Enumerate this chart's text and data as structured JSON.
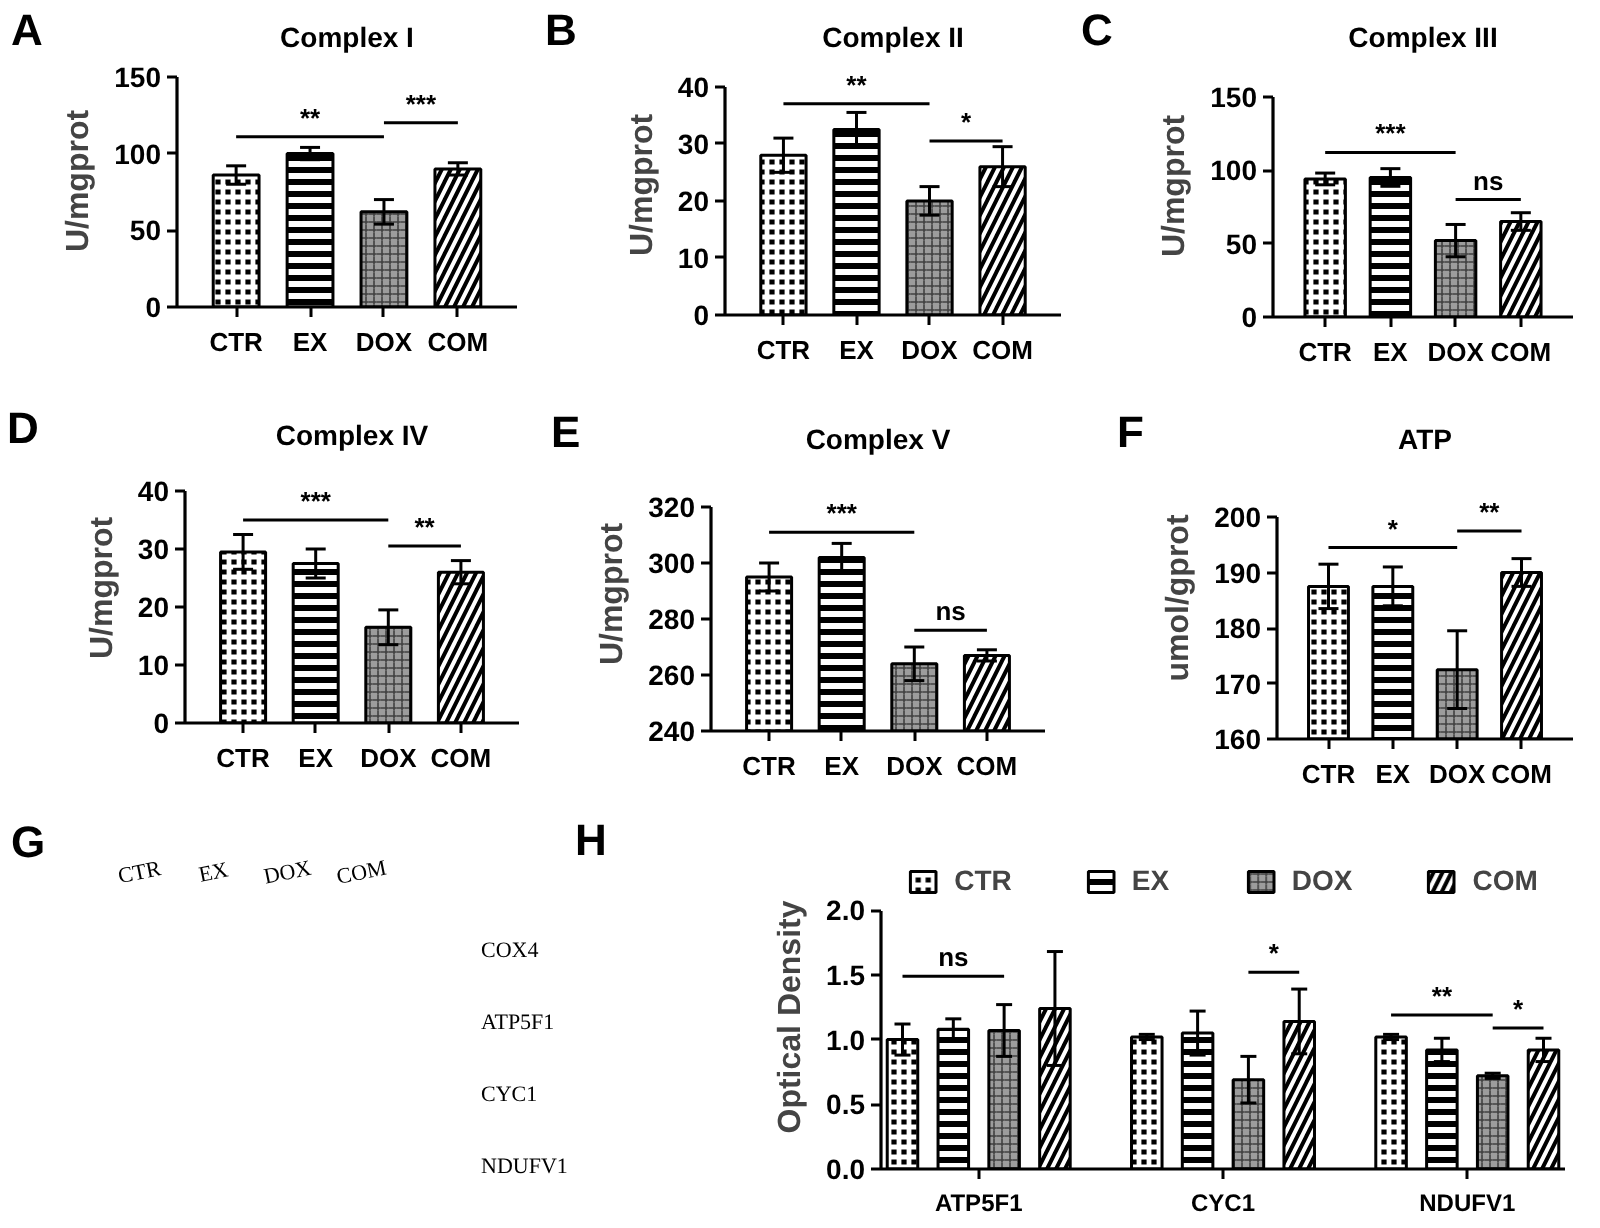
{
  "chart_data": [
    {
      "type": "bar",
      "title": "Complex I",
      "ylabel": "U/mgprot",
      "categories": [
        "CTR",
        "EX",
        "DOX",
        "COM"
      ],
      "values": [
        86,
        100,
        62,
        90
      ],
      "errors": [
        6,
        4,
        8,
        4
      ],
      "colors": [
        "#000000",
        "#000000",
        "#9c9c9c",
        "#000000"
      ],
      "ylim": [
        0,
        150
      ],
      "yticks": [
        0,
        50,
        100,
        150
      ],
      "annotations": [
        "A",
        "**",
        "***"
      ]
    },
    {
      "type": "bar",
      "title": "Complex II",
      "ylabel": "U/mgprot",
      "categories": [
        "CTR",
        "EX",
        "DOX",
        "COM"
      ],
      "values": [
        28,
        32.5,
        20,
        26
      ],
      "errors": [
        3,
        3,
        2.5,
        3.5
      ],
      "colors": [
        "#000000",
        "#000000",
        "#9c9c9c",
        "#000000"
      ],
      "ylim": [
        0,
        40
      ],
      "yticks": [
        0,
        10,
        20,
        30,
        40
      ],
      "annotations": [
        "B",
        "**",
        "*"
      ]
    },
    {
      "type": "bar",
      "title": "Complex III",
      "ylabel": "U/mgprot",
      "categories": [
        "CTR",
        "EX",
        "DOX",
        "COM"
      ],
      "values": [
        94,
        95,
        52,
        65
      ],
      "errors": [
        4,
        6,
        11,
        6
      ],
      "colors": [
        "#000000",
        "#000000",
        "#9c9c9c",
        "#000000"
      ],
      "ylim": [
        0,
        150
      ],
      "yticks": [
        0,
        50,
        100,
        150
      ],
      "annotations": [
        "C",
        "***",
        "ns"
      ]
    },
    {
      "type": "bar",
      "title": "Complex IV",
      "ylabel": "U/mgprot",
      "categories": [
        "CTR",
        "EX",
        "DOX",
        "COM"
      ],
      "values": [
        29.5,
        27.5,
        16.5,
        26
      ],
      "errors": [
        3,
        2.5,
        3,
        2
      ],
      "colors": [
        "#000000",
        "#000000",
        "#9c9c9c",
        "#000000"
      ],
      "ylim": [
        0,
        40
      ],
      "yticks": [
        0,
        10,
        20,
        30,
        40
      ],
      "annotations": [
        "D",
        "***",
        "**"
      ]
    },
    {
      "type": "bar",
      "title": "Complex V",
      "ylabel": "U/mgprot",
      "categories": [
        "CTR",
        "EX",
        "DOX",
        "COM"
      ],
      "values": [
        295,
        302,
        264,
        267
      ],
      "errors": [
        5,
        5,
        6,
        2
      ],
      "colors": [
        "#000000",
        "#000000",
        "#9c9c9c",
        "#000000"
      ],
      "ylim": [
        240,
        320
      ],
      "yticks": [
        240,
        260,
        280,
        300,
        320
      ],
      "annotations": [
        "E",
        "***",
        "ns"
      ]
    },
    {
      "type": "bar",
      "title": "ATP",
      "ylabel": "umol/gprot",
      "categories": [
        "CTR",
        "EX",
        "DOX",
        "COM"
      ],
      "values": [
        187.5,
        187.5,
        172.5,
        190
      ],
      "errors": [
        4,
        3.5,
        7,
        2.5
      ],
      "colors": [
        "#000000",
        "#000000",
        "#9c9c9c",
        "#000000"
      ],
      "ylim": [
        160,
        200
      ],
      "yticks": [
        160,
        170,
        180,
        190,
        200
      ],
      "annotations": [
        "F",
        "*",
        "**"
      ]
    },
    {
      "type": "other",
      "annotations": [
        "G"
      ],
      "categories": [
        "CTR",
        "EX",
        "DOX",
        "COM"
      ],
      "y_categories": [
        "COX4",
        "ATP5F1",
        "CYC1",
        "NDUFV1"
      ]
    },
    {
      "type": "bar",
      "ylabel": "Optical Density",
      "categories": [
        "ATP5F1",
        "CYC1",
        "NDUFV1"
      ],
      "series": [
        {
          "name": "CTR",
          "color": "#000000",
          "values": [
            1.0,
            1.02,
            1.02
          ],
          "errors": [
            0.12,
            0.02,
            0.02
          ]
        },
        {
          "name": "EX",
          "color": "#000000",
          "values": [
            1.08,
            1.05,
            0.92
          ],
          "errors": [
            0.08,
            0.17,
            0.09
          ]
        },
        {
          "name": "DOX",
          "color": "#9c9c9c",
          "values": [
            1.07,
            0.69,
            0.72
          ],
          "errors": [
            0.2,
            0.18,
            0.02
          ]
        },
        {
          "name": "COM",
          "color": "#000000",
          "values": [
            1.24,
            1.14,
            0.92
          ],
          "errors": [
            0.44,
            0.25,
            0.09
          ]
        }
      ],
      "ylim": [
        0,
        2
      ],
      "yticks": [
        {
          "value": 0,
          "label": "0.0"
        },
        0.5,
        {
          "value": 1,
          "label": "1.0"
        },
        1.5,
        {
          "value": 2,
          "label": "2.0"
        }
      ],
      "legend": "top",
      "annotations": [
        "H",
        "ns",
        "*",
        "**",
        "*"
      ]
    }
  ]
}
